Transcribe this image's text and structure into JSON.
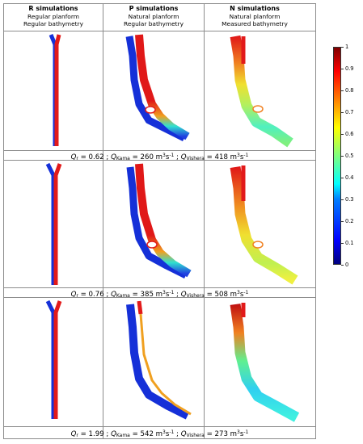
{
  "columns": [
    {
      "title": "R simulations",
      "line1": "Regular planform",
      "line2": "Regular bathymetry"
    },
    {
      "title": "P simulations",
      "line1": "Natural planform",
      "line2": "Regular bathymetry"
    },
    {
      "title": "N simulations",
      "line1": "Natural planform",
      "line2": "Measured bathymetry"
    }
  ],
  "rows": [
    {
      "qr_symbol": "Q",
      "qr_sub": "r",
      "qr_value": " = 0.62 ; ",
      "q1_symbol": "Q",
      "q1_sub": "Kama",
      "q1_value": " = 260 m",
      "q1_unit_sup": "3",
      "q1_unit": "s",
      "q1_unit_sup2": "-1",
      "sep": " ; ",
      "q2_symbol": "Q",
      "q2_sub": "Vishera",
      "q2_value": " = 418 m",
      "q2_unit_sup": "3",
      "q2_unit": "s",
      "q2_unit_sup2": "-1"
    },
    {
      "qr_symbol": "Q",
      "qr_sub": "r",
      "qr_value": " = 0.76 ; ",
      "q1_symbol": "Q",
      "q1_sub": "Kama",
      "q1_value": " = 385 m",
      "q1_unit_sup": "3",
      "q1_unit": "s",
      "q1_unit_sup2": "-1",
      "sep": " ; ",
      "q2_symbol": "Q",
      "q2_sub": "Vishera",
      "q2_value": " = 508 m",
      "q2_unit_sup": "3",
      "q2_unit": "s",
      "q2_unit_sup2": "-1"
    },
    {
      "qr_symbol": "Q",
      "qr_sub": "r",
      "qr_value": " = 1.99 ; ",
      "q1_symbol": "Q",
      "q1_sub": "Kama",
      "q1_value": " = 542 m",
      "q1_unit_sup": "3",
      "q1_unit": "s",
      "q1_unit_sup2": "-1",
      "sep": " ; ",
      "q2_symbol": "Q",
      "q2_sub": "Vishera",
      "q2_value": " = 273 m",
      "q2_unit_sup": "3",
      "q2_unit": "s",
      "q2_unit_sup2": "-1"
    }
  ],
  "colorbar": {
    "ticks": [
      "1",
      "0.9",
      "0.8",
      "0.7",
      "0.6",
      "0.5",
      "0.4",
      "0.3",
      "0.2",
      "0.1",
      "0"
    ],
    "colormap": "jet",
    "min": 0,
    "max": 1
  },
  "colors": {
    "kama": "#e21a1a",
    "vishera": "#1530d8",
    "border": "#8c8c8c"
  }
}
